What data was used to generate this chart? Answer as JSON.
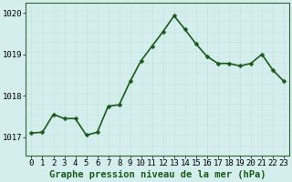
{
  "x": [
    0,
    1,
    2,
    3,
    4,
    5,
    6,
    7,
    8,
    9,
    10,
    11,
    12,
    13,
    14,
    15,
    16,
    17,
    18,
    19,
    20,
    21,
    22,
    23
  ],
  "y": [
    1017.1,
    1017.12,
    1017.55,
    1017.45,
    1017.45,
    1017.05,
    1017.12,
    1017.75,
    1017.78,
    1018.35,
    1018.85,
    1019.2,
    1019.55,
    1019.93,
    1019.6,
    1019.25,
    1018.95,
    1018.78,
    1018.78,
    1018.72,
    1018.78,
    1019.0,
    1018.62,
    1018.35
  ],
  "line_color": "#1a5c1a",
  "marker_color": "#1a5c1a",
  "bg_color": "#d4eded",
  "grid_color_major": "#b0c8c8",
  "grid_color_minor": "#c4dede",
  "title": "Graphe pression niveau de la mer (hPa)",
  "ylim_min": 1016.55,
  "ylim_max": 1020.25,
  "yticks": [
    1017,
    1018,
    1019,
    1020
  ],
  "xlim_min": -0.5,
  "xlim_max": 23.5,
  "xticks": [
    0,
    1,
    2,
    3,
    4,
    5,
    6,
    7,
    8,
    9,
    10,
    11,
    12,
    13,
    14,
    15,
    16,
    17,
    18,
    19,
    20,
    21,
    22,
    23
  ],
  "title_fontsize": 7.5,
  "tick_fontsize": 6.5,
  "line_width": 1.2,
  "marker_size": 2.5,
  "spine_color": "#336633"
}
